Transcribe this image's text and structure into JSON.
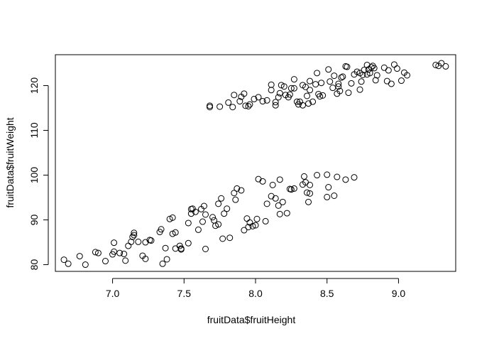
{
  "chart_data": {
    "type": "scatter",
    "title": "",
    "xlabel": "fruitData$fruitHeight",
    "ylabel": "fruitData$fruitWeight",
    "xlim": [
      6.6,
      9.4
    ],
    "ylim": [
      78.5,
      126.9
    ],
    "x_ticks": [
      7.0,
      7.5,
      8.0,
      8.5,
      9.0
    ],
    "x_tick_labels": [
      "7.0",
      "7.5",
      "8.0",
      "8.5",
      "9.0"
    ],
    "y_ticks": [
      80,
      90,
      100,
      110,
      120
    ],
    "y_tick_labels": [
      "80",
      "90",
      "100",
      "110",
      "120"
    ],
    "grid": false,
    "series": [
      {
        "marker": "open-circle",
        "points": [
          [
            6.66,
            81.1
          ],
          [
            6.69,
            80.2
          ],
          [
            6.77,
            81.9
          ],
          [
            6.81,
            80.0
          ],
          [
            6.88,
            82.8
          ],
          [
            6.9,
            82.6
          ],
          [
            6.95,
            80.8
          ],
          [
            7.0,
            82.3
          ],
          [
            7.01,
            82.9
          ],
          [
            7.01,
            84.9
          ],
          [
            7.05,
            82.6
          ],
          [
            7.08,
            82.4
          ],
          [
            7.09,
            80.9
          ],
          [
            7.11,
            84.2
          ],
          [
            7.13,
            85.1
          ],
          [
            7.14,
            86.2
          ],
          [
            7.15,
            86.6
          ],
          [
            7.15,
            87.1
          ],
          [
            7.18,
            85.1
          ],
          [
            7.21,
            82.0
          ],
          [
            7.23,
            81.3
          ],
          [
            7.23,
            85.0
          ],
          [
            7.26,
            85.5
          ],
          [
            7.27,
            85.4
          ],
          [
            7.33,
            87.3
          ],
          [
            7.34,
            87.9
          ],
          [
            7.35,
            80.2
          ],
          [
            7.37,
            83.7
          ],
          [
            7.38,
            81.2
          ],
          [
            7.4,
            90.2
          ],
          [
            7.42,
            90.5
          ],
          [
            7.42,
            86.9
          ],
          [
            7.44,
            87.2
          ],
          [
            7.44,
            83.6
          ],
          [
            7.47,
            84.2
          ],
          [
            7.48,
            83.4
          ],
          [
            7.48,
            83.6
          ],
          [
            7.53,
            84.8
          ],
          [
            7.53,
            89.3
          ],
          [
            7.55,
            91.4
          ],
          [
            7.55,
            92.4
          ],
          [
            7.56,
            92.5
          ],
          [
            7.58,
            91.8
          ],
          [
            7.6,
            87.8
          ],
          [
            7.62,
            92.4
          ],
          [
            7.63,
            89.6
          ],
          [
            7.64,
            93.1
          ],
          [
            7.65,
            91.2
          ],
          [
            7.65,
            83.5
          ],
          [
            7.7,
            90.6
          ],
          [
            7.71,
            89.9
          ],
          [
            7.72,
            88.7
          ],
          [
            7.74,
            93.6
          ],
          [
            7.74,
            89.0
          ],
          [
            7.76,
            94.8
          ],
          [
            7.77,
            85.8
          ],
          [
            7.78,
            91.4
          ],
          [
            7.8,
            92.5
          ],
          [
            7.82,
            86.0
          ],
          [
            7.85,
            96.0
          ],
          [
            7.86,
            94.5
          ],
          [
            7.87,
            97.0
          ],
          [
            7.9,
            96.6
          ],
          [
            7.92,
            87.7
          ],
          [
            7.94,
            90.3
          ],
          [
            7.95,
            88.4
          ],
          [
            7.96,
            89.4
          ],
          [
            7.98,
            88.6
          ],
          [
            8.0,
            88.8
          ],
          [
            8.01,
            90.2
          ],
          [
            8.02,
            99.1
          ],
          [
            8.05,
            98.6
          ],
          [
            8.07,
            89.7
          ],
          [
            8.08,
            93.6
          ],
          [
            8.11,
            95.3
          ],
          [
            8.12,
            97.8
          ],
          [
            8.14,
            94.8
          ],
          [
            8.16,
            93.2
          ],
          [
            8.17,
            99.0
          ],
          [
            8.17,
            91.3
          ],
          [
            8.19,
            94.0
          ],
          [
            8.22,
            91.5
          ],
          [
            8.24,
            96.9
          ],
          [
            8.25,
            96.8
          ],
          [
            8.27,
            97.0
          ],
          [
            8.33,
            97.9
          ],
          [
            8.34,
            99.7
          ],
          [
            8.35,
            98.4
          ],
          [
            8.36,
            96.1
          ],
          [
            8.37,
            94.0
          ],
          [
            8.38,
            97.8
          ],
          [
            8.38,
            95.9
          ],
          [
            8.43,
            100.0
          ],
          [
            8.5,
            100.1
          ],
          [
            8.5,
            95.1
          ],
          [
            8.51,
            97.3
          ],
          [
            8.55,
            95.4
          ],
          [
            8.57,
            99.6
          ],
          [
            8.63,
            99.0
          ],
          [
            8.69,
            99.5
          ],
          [
            7.68,
            115.5
          ],
          [
            7.68,
            115.2
          ],
          [
            7.75,
            115.3
          ],
          [
            7.81,
            116.2
          ],
          [
            7.84,
            115.2
          ],
          [
            7.85,
            117.9
          ],
          [
            7.89,
            116.5
          ],
          [
            7.9,
            117.5
          ],
          [
            7.92,
            118.2
          ],
          [
            7.93,
            115.5
          ],
          [
            7.95,
            115.4
          ],
          [
            7.96,
            115.8
          ],
          [
            7.99,
            117.0
          ],
          [
            8.02,
            117.4
          ],
          [
            8.05,
            116.5
          ],
          [
            8.08,
            116.7
          ],
          [
            8.11,
            119.0
          ],
          [
            8.11,
            120.2
          ],
          [
            8.14,
            115.6
          ],
          [
            8.14,
            116.3
          ],
          [
            8.16,
            117.4
          ],
          [
            8.17,
            118.3
          ],
          [
            8.18,
            120.1
          ],
          [
            8.2,
            119.8
          ],
          [
            8.21,
            117.9
          ],
          [
            8.23,
            117.4
          ],
          [
            8.24,
            118.0
          ],
          [
            8.25,
            119.4
          ],
          [
            8.27,
            121.4
          ],
          [
            8.27,
            119.4
          ],
          [
            8.29,
            116.4
          ],
          [
            8.3,
            115.8
          ],
          [
            8.31,
            116.4
          ],
          [
            8.33,
            115.6
          ],
          [
            8.33,
            120.1
          ],
          [
            8.35,
            119.7
          ],
          [
            8.36,
            117.7
          ],
          [
            8.37,
            116.0
          ],
          [
            8.38,
            121.0
          ],
          [
            8.38,
            119.0
          ],
          [
            8.4,
            116.4
          ],
          [
            8.42,
            120.3
          ],
          [
            8.43,
            122.8
          ],
          [
            8.44,
            118.1
          ],
          [
            8.45,
            117.6
          ],
          [
            8.46,
            120.6
          ],
          [
            8.47,
            117.8
          ],
          [
            8.51,
            123.6
          ],
          [
            8.52,
            120.9
          ],
          [
            8.54,
            119.5
          ],
          [
            8.55,
            122.2
          ],
          [
            8.57,
            118.2
          ],
          [
            8.58,
            120.4
          ],
          [
            8.58,
            119.8
          ],
          [
            8.59,
            118.8
          ],
          [
            8.6,
            121.8
          ],
          [
            8.61,
            122.0
          ],
          [
            8.63,
            124.3
          ],
          [
            8.64,
            124.2
          ],
          [
            8.65,
            118.4
          ],
          [
            8.67,
            120.5
          ],
          [
            8.69,
            122.5
          ],
          [
            8.71,
            123.1
          ],
          [
            8.73,
            119.1
          ],
          [
            8.73,
            122.8
          ],
          [
            8.74,
            120.9
          ],
          [
            8.75,
            122.4
          ],
          [
            8.76,
            123.5
          ],
          [
            8.78,
            122.5
          ],
          [
            8.78,
            124.6
          ],
          [
            8.79,
            123.6
          ],
          [
            8.8,
            122.8
          ],
          [
            8.81,
            124.1
          ],
          [
            8.82,
            124.4
          ],
          [
            8.83,
            123.9
          ],
          [
            8.84,
            121.2
          ],
          [
            8.85,
            122.3
          ],
          [
            8.9,
            124.0
          ],
          [
            8.92,
            121.0
          ],
          [
            8.93,
            123.4
          ],
          [
            8.95,
            120.4
          ],
          [
            8.97,
            124.7
          ],
          [
            8.99,
            123.8
          ],
          [
            9.02,
            121.1
          ],
          [
            9.04,
            122.9
          ],
          [
            9.06,
            122.3
          ],
          [
            9.26,
            124.6
          ],
          [
            9.28,
            124.4
          ],
          [
            9.3,
            125.0
          ],
          [
            9.33,
            124.3
          ]
        ]
      }
    ]
  }
}
